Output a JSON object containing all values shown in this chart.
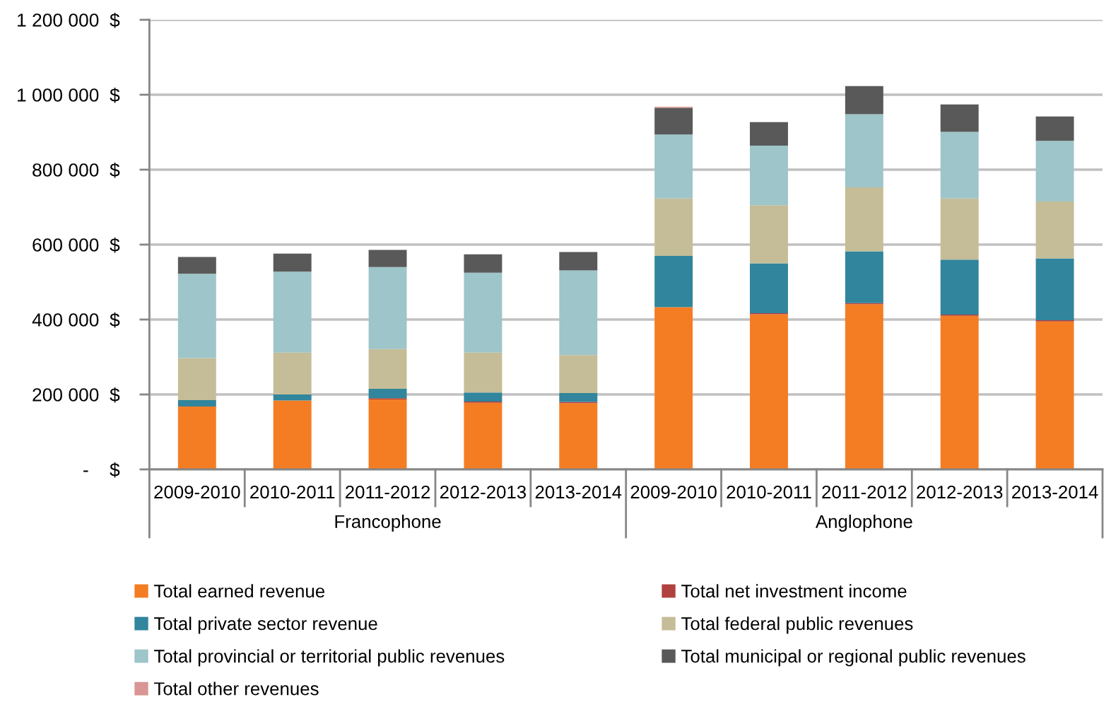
{
  "chart_data": {
    "type": "bar",
    "stacked": true,
    "categories": [
      "2009-2010",
      "2010-2011",
      "2011-2012",
      "2012-2013",
      "2013-2014",
      "2009-2010",
      "2010-2011",
      "2011-2012",
      "2012-2013",
      "2013-2014"
    ],
    "series": [
      {
        "name": "Total earned revenue",
        "color": "#f47d23",
        "values": [
          168000,
          184000,
          187000,
          178000,
          177000,
          433000,
          414000,
          441000,
          410000,
          395000
        ]
      },
      {
        "name": "Total net investment income",
        "color": "#b0413e",
        "values": [
          0,
          0,
          3000,
          3000,
          3000,
          0,
          3000,
          3000,
          3000,
          3000
        ]
      },
      {
        "name": "Total private sector revenue",
        "color": "#31859c",
        "values": [
          17000,
          16000,
          25000,
          24000,
          24000,
          137000,
          133000,
          138000,
          147000,
          165000
        ]
      },
      {
        "name": "Total federal public revenues",
        "color": "#c4bd97",
        "values": [
          112000,
          112000,
          106000,
          107000,
          101000,
          153000,
          155000,
          171000,
          163000,
          152000
        ]
      },
      {
        "name": "Total provincial or territorial public revenues",
        "color": "#9ec5c9",
        "values": [
          225000,
          216000,
          219000,
          213000,
          226000,
          171000,
          159000,
          195000,
          178000,
          162000
        ]
      },
      {
        "name": "Total municipal or regional public revenues",
        "color": "#595959",
        "values": [
          45000,
          48000,
          46000,
          49000,
          49000,
          71000,
          63000,
          75000,
          73000,
          65000
        ]
      },
      {
        "name": "Total other revenues",
        "color": "#d99694",
        "values": [
          0,
          0,
          0,
          0,
          0,
          3000,
          0,
          0,
          0,
          0
        ]
      }
    ],
    "ylim": [
      0,
      1200000
    ],
    "yticks": [
      {
        "value": 0,
        "label": "-    $"
      },
      {
        "value": 200000,
        "label": "200 000  $"
      },
      {
        "value": 400000,
        "label": "400 000  $"
      },
      {
        "value": 600000,
        "label": "600 000  $"
      },
      {
        "value": 800000,
        "label": "800 000  $"
      },
      {
        "value": 1000000,
        "label": "1 000 000  $"
      },
      {
        "value": 1200000,
        "label": "1 200 000  $"
      }
    ],
    "grid": "y",
    "legend": "bottom",
    "annotations": [
      "Francophone",
      "Anglophone"
    ]
  }
}
